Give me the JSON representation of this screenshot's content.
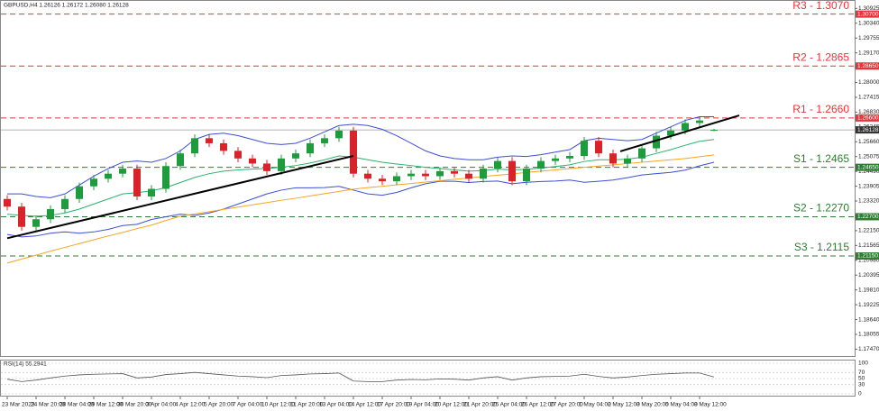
{
  "chart_data": {
    "type": "candlestick",
    "title": "GBPUSD,H4  1.26126 1.26172 1.26080 1.26128",
    "categories": [
      "23 Mar 2023",
      null,
      "24 Mar 20:00",
      null,
      "28 Mar 04:00",
      null,
      "29 Mar 12:00",
      null,
      "30 Mar 20:00",
      null,
      "3 Apr 04:00",
      null,
      "4 Apr 12:00",
      null,
      "5 Apr 20:00",
      null,
      "7 Apr 04:00",
      null,
      "10 Apr 12:00",
      null,
      "11 Apr 20:00",
      null,
      "13 Apr 04:00",
      null,
      "14 Apr 12:00",
      null,
      "17 Apr 20:00",
      null,
      "19 Apr 04:00",
      null,
      "20 Apr 12:00",
      null,
      "21 Apr 20:00",
      null,
      "25 Apr 04:00",
      null,
      "26 Apr 12:00",
      null,
      "27 Apr 20:00",
      null,
      "1 May 04:00",
      null,
      "2 May 12:00",
      null,
      "3 May 20:00",
      null,
      "5 May 04:00",
      null,
      "8 May 12:00",
      null
    ],
    "open": [
      1.234,
      1.231,
      1.223,
      1.226,
      1.23,
      1.234,
      1.239,
      1.242,
      1.244,
      1.246,
      1.235,
      1.238,
      1.247,
      1.252,
      1.258,
      1.256,
      1.253,
      1.25,
      1.248,
      1.245,
      1.25,
      1.252,
      1.256,
      1.258,
      1.261,
      1.244,
      1.242,
      1.241,
      1.243,
      1.244,
      1.243,
      1.245,
      1.244,
      1.242,
      1.246,
      1.249,
      1.241,
      1.246,
      1.249,
      1.25,
      1.251,
      1.257,
      1.252,
      1.248,
      1.25,
      1.254,
      1.259,
      1.261,
      1.264,
      1.26126
    ],
    "high": [
      1.2355,
      1.2325,
      1.2275,
      1.2315,
      1.2355,
      1.2405,
      1.2435,
      1.2455,
      1.2475,
      1.2475,
      1.2395,
      1.2485,
      1.2535,
      1.2595,
      1.2595,
      1.2575,
      1.2545,
      1.2515,
      1.2495,
      1.2515,
      1.2535,
      1.2575,
      1.2595,
      1.2625,
      1.2625,
      1.2455,
      1.2435,
      1.2445,
      1.2455,
      1.2455,
      1.2465,
      1.2465,
      1.2455,
      1.2475,
      1.2505,
      1.2505,
      1.2475,
      1.2505,
      1.2515,
      1.2525,
      1.2585,
      1.2585,
      1.2535,
      1.2515,
      1.2555,
      1.2605,
      1.2625,
      1.2655,
      1.2665,
      1.26172
    ],
    "low": [
      1.2295,
      1.2215,
      1.2215,
      1.2245,
      1.2285,
      1.2325,
      1.2375,
      1.2405,
      1.2425,
      1.2335,
      1.2335,
      1.2365,
      1.2455,
      1.2505,
      1.2545,
      1.2515,
      1.2485,
      1.2465,
      1.2435,
      1.2435,
      1.2485,
      1.2505,
      1.2545,
      1.2565,
      1.2425,
      1.2405,
      1.2395,
      1.2395,
      1.2415,
      1.2415,
      1.2415,
      1.2425,
      1.2405,
      1.2405,
      1.2445,
      1.2395,
      1.2395,
      1.2445,
      1.2475,
      1.2485,
      1.2495,
      1.2505,
      1.2465,
      1.2465,
      1.2485,
      1.2525,
      1.2575,
      1.2595,
      1.2625,
      1.2608
    ],
    "close": [
      1.231,
      1.223,
      1.226,
      1.23,
      1.234,
      1.239,
      1.242,
      1.244,
      1.246,
      1.235,
      1.238,
      1.247,
      1.252,
      1.258,
      1.256,
      1.253,
      1.25,
      1.248,
      1.245,
      1.25,
      1.252,
      1.256,
      1.258,
      1.261,
      1.244,
      1.242,
      1.241,
      1.243,
      1.244,
      1.243,
      1.245,
      1.244,
      1.242,
      1.246,
      1.249,
      1.241,
      1.246,
      1.249,
      1.25,
      1.251,
      1.257,
      1.252,
      1.248,
      1.25,
      1.254,
      1.259,
      1.261,
      1.264,
      1.265,
      1.26128
    ],
    "up_color": "#1e9b3c",
    "down_color": "#d8232a",
    "indicators": [
      {
        "color": "#3d4fd6",
        "values": [
          1.236,
          1.236,
          1.235,
          1.2345,
          1.236,
          1.2395,
          1.243,
          1.246,
          1.2485,
          1.249,
          1.2485,
          1.25,
          1.253,
          1.2575,
          1.2595,
          1.26,
          1.259,
          1.2575,
          1.256,
          1.2555,
          1.256,
          1.258,
          1.2605,
          1.263,
          1.2635,
          1.263,
          1.2615,
          1.259,
          1.256,
          1.253,
          1.251,
          1.25,
          1.2495,
          1.2495,
          1.2505,
          1.251,
          1.2508,
          1.2515,
          1.2525,
          1.2535,
          1.257,
          1.258,
          1.2575,
          1.257,
          1.2575,
          1.26,
          1.2625,
          1.265,
          1.2665,
          1.2665
        ]
      },
      {
        "color": "#3d4fd6",
        "values": [
          1.22,
          1.219,
          1.2194,
          1.2205,
          1.221,
          1.2205,
          1.221,
          1.222,
          1.2235,
          1.224,
          1.2259,
          1.227,
          1.228,
          1.2275,
          1.2285,
          1.23,
          1.232,
          1.234,
          1.236,
          1.2375,
          1.2384,
          1.2384,
          1.2385,
          1.239,
          1.2375,
          1.236,
          1.2355,
          1.2366,
          1.2384,
          1.24,
          1.241,
          1.241,
          1.2405,
          1.2409,
          1.2411,
          1.24,
          1.2406,
          1.2409,
          1.2411,
          1.2415,
          1.2406,
          1.241,
          1.2415,
          1.2424,
          1.2435,
          1.244,
          1.2445,
          1.2454,
          1.2471,
          1.2485
        ]
      },
      {
        "color": "#2bb36a",
        "values": [
          1.228,
          1.2275,
          1.2272,
          1.2275,
          1.2285,
          1.23,
          1.232,
          1.234,
          1.236,
          1.2365,
          1.2372,
          1.2385,
          1.2405,
          1.2425,
          1.244,
          1.245,
          1.2455,
          1.2458,
          1.246,
          1.2465,
          1.2472,
          1.2482,
          1.2495,
          1.251,
          1.2505,
          1.2495,
          1.2485,
          1.2478,
          1.2472,
          1.2465,
          1.246,
          1.2455,
          1.245,
          1.2452,
          1.2458,
          1.2455,
          1.2457,
          1.2462,
          1.2468,
          1.2475,
          1.2488,
          1.2495,
          1.2495,
          1.2497,
          1.2505,
          1.252,
          1.2535,
          1.2552,
          1.2568,
          1.2575
        ]
      },
      {
        "color": "#f5a623",
        "values": [
          1.2087,
          1.2103,
          1.2118,
          1.2134,
          1.2149,
          1.2164,
          1.2179,
          1.2194,
          1.2208,
          1.2223,
          1.2237,
          1.2255,
          1.2272,
          1.2281,
          1.229,
          1.2299,
          1.2308,
          1.2317,
          1.2326,
          1.2335,
          1.2343,
          1.2352,
          1.2361,
          1.237,
          1.2379,
          1.2385,
          1.239,
          1.2396,
          1.2401,
          1.2407,
          1.2412,
          1.2418,
          1.2423,
          1.2429,
          1.2434,
          1.2439,
          1.2445,
          1.245,
          1.2455,
          1.246,
          1.2465,
          1.247,
          1.2475,
          1.248,
          1.2485,
          1.249,
          1.2495,
          1.25,
          1.2507,
          1.2514
        ]
      }
    ],
    "trendlines": [
      {
        "color": "#000000",
        "x": [
          0,
          24
        ],
        "y": [
          1.2185,
          1.251
        ]
      },
      {
        "color": "#000000",
        "x": [
          42.5,
          50.75
        ],
        "y": [
          1.2528,
          1.267
        ]
      }
    ],
    "levels": [
      {
        "label": "R3 - 1.3070",
        "value": 1.307,
        "axis_label": "1.30700",
        "color": "#e5343a"
      },
      {
        "label": "R2 - 1.2865",
        "value": 1.2865,
        "axis_label": "1.28650",
        "color": "#e5343a"
      },
      {
        "label": "R1 - 1.2660",
        "value": 1.266,
        "axis_label": "1.26600",
        "color": "#e5343a"
      },
      {
        "label": "S1 - 1.2465",
        "value": 1.2465,
        "axis_label": "1.24650",
        "color": "#2e7d32"
      },
      {
        "label": "S2 - 1.2270",
        "value": 1.227,
        "axis_label": "1.22700",
        "color": "#2e7d32"
      },
      {
        "label": "S3 - 1.2115",
        "value": 1.2115,
        "axis_label": "1.21150",
        "color": "#2e7d32"
      }
    ],
    "current_price": {
      "value": 1.26128,
      "label": "1.26128"
    },
    "ylim": [
      1.172,
      1.3115
    ],
    "yticks": [
      {
        "value": 1.1747,
        "label": "1.17470"
      },
      {
        "value": 1.18055,
        "label": "1.18055"
      },
      {
        "value": 1.1864,
        "label": "1.18640"
      },
      {
        "value": 1.19225,
        "label": "1.19225"
      },
      {
        "value": 1.1981,
        "label": "1.19810"
      },
      {
        "value": 1.20395,
        "label": "1.20395"
      },
      {
        "value": 1.2098,
        "label": "1.20980"
      },
      {
        "value": 1.21565,
        "label": "1.21565"
      },
      {
        "value": 1.2215,
        "label": "1.22150"
      },
      {
        "value": 1.22735,
        "label": "1.22735"
      },
      {
        "value": 1.2332,
        "label": "1.23320"
      },
      {
        "value": 1.23905,
        "label": "1.23905"
      },
      {
        "value": 1.2449,
        "label": "1.24490"
      },
      {
        "value": 1.25075,
        "label": "1.25075"
      },
      {
        "value": 1.2566,
        "label": "1.25660"
      },
      {
        "value": 1.26245,
        "label": "1.26245"
      },
      {
        "value": 1.2683,
        "label": "1.26830"
      },
      {
        "value": 1.27415,
        "label": "1.27415"
      },
      {
        "value": 1.28,
        "label": "1.28000"
      },
      {
        "value": 1.28585,
        "label": "1.28585"
      },
      {
        "value": 1.2917,
        "label": "1.29170"
      },
      {
        "value": 1.29755,
        "label": "1.29755"
      },
      {
        "value": 1.3034,
        "label": "1.30340"
      },
      {
        "value": 1.30925,
        "label": "1.30925"
      }
    ],
    "rsi": {
      "label": "RSI(14) 55.2941",
      "color": "#555555",
      "values": [
        48,
        40,
        45,
        52,
        58,
        62,
        64,
        65,
        66,
        52,
        55,
        63,
        66,
        70,
        66,
        62,
        58,
        56,
        53,
        60,
        62,
        65,
        66,
        68,
        42,
        40,
        40,
        45,
        47,
        46,
        49,
        48,
        45,
        52,
        56,
        45,
        52,
        56,
        57,
        58,
        64,
        57,
        52,
        55,
        60,
        64,
        66,
        68,
        68,
        55.2941
      ],
      "ylim": [
        0,
        100
      ],
      "yticks": [
        100,
        70,
        50,
        30,
        0
      ]
    }
  }
}
